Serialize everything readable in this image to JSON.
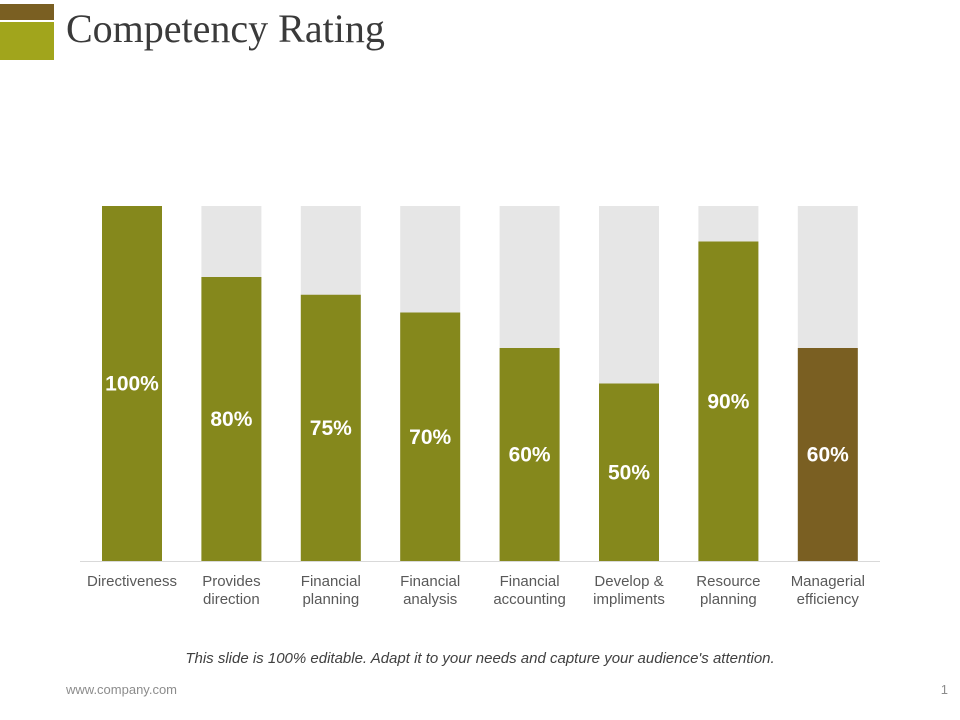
{
  "slide": {
    "title": "Competency Rating",
    "caption": "This slide is 100% editable. Adapt it to your needs and capture your audience's attention.",
    "footer_url": "www.company.com",
    "page_number": "1"
  },
  "colors": {
    "accent_dark": "#7a5f22",
    "accent_light": "#a1a51c",
    "bar_green": "#85881c",
    "bar_brown": "#7a5f22",
    "bar_track": "#e6e6e6"
  },
  "chart_data": {
    "type": "bar",
    "title": "",
    "xlabel": "",
    "ylabel": "",
    "ylim": [
      0,
      100
    ],
    "grid": false,
    "categories": [
      [
        "Directiveness"
      ],
      [
        "Provides",
        "direction"
      ],
      [
        "Financial",
        "planning"
      ],
      [
        "Financial",
        "analysis"
      ],
      [
        "Financial",
        "accounting"
      ],
      [
        "Develop &",
        "impliments"
      ],
      [
        "Resource",
        "planning"
      ],
      [
        "Managerial",
        "efficiency"
      ]
    ],
    "values": [
      100,
      80,
      75,
      70,
      60,
      50,
      90,
      60
    ],
    "data_labels": [
      "100%",
      "80%",
      "75%",
      "70%",
      "60%",
      "50%",
      "90%",
      "60%"
    ],
    "bar_colors": [
      "#85881c",
      "#85881c",
      "#85881c",
      "#85881c",
      "#85881c",
      "#85881c",
      "#85881c",
      "#7a5f22"
    ]
  }
}
